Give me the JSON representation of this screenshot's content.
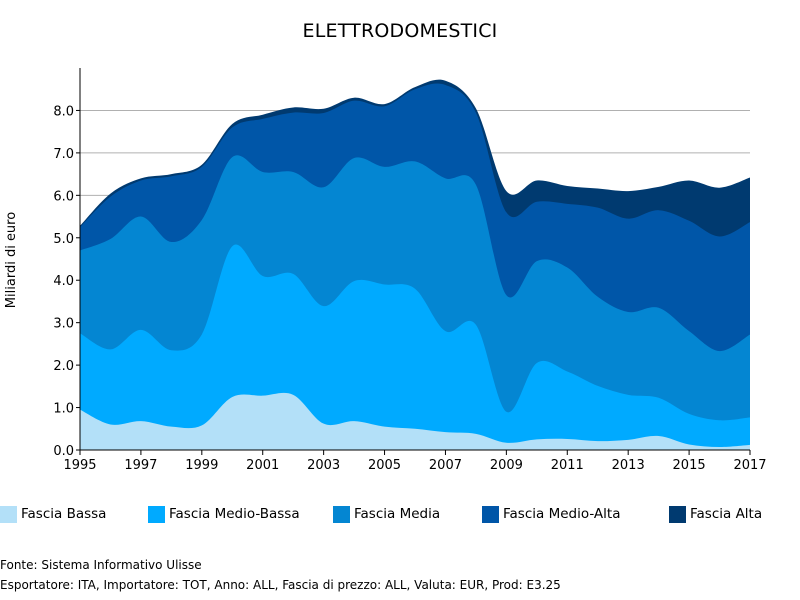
{
  "chart_data": {
    "type": "area",
    "stacked": true,
    "title": "ELETTRODOMESTICI",
    "ylabel": "Miliardi di euro",
    "xlabel": "",
    "xlim": [
      1995,
      2017
    ],
    "ylim": [
      0,
      9
    ],
    "x_ticks": [
      1995,
      1997,
      1999,
      2001,
      2003,
      2005,
      2007,
      2009,
      2011,
      2013,
      2015,
      2017
    ],
    "y_ticks": [
      0,
      1,
      2,
      3,
      4,
      5,
      6,
      7,
      8
    ],
    "y_tick_labels": [
      "0.0",
      "1.0",
      "2.0",
      "3.0",
      "4.0",
      "5.0",
      "6.0",
      "7.0",
      "8.0"
    ],
    "grid": "horizontal",
    "legend_position": "bottom",
    "x": [
      1995,
      1996,
      1997,
      1998,
      1999,
      2000,
      2001,
      2002,
      2003,
      2004,
      2005,
      2006,
      2007,
      2008,
      2009,
      2010,
      2011,
      2012,
      2013,
      2014,
      2015,
      2016,
      2017
    ],
    "series": [
      {
        "name": "Fascia Bassa",
        "color": "#b3e0f8",
        "values": [
          0.95,
          0.6,
          0.68,
          0.55,
          0.58,
          1.25,
          1.28,
          1.3,
          0.62,
          0.68,
          0.55,
          0.5,
          0.42,
          0.38,
          0.17,
          0.25,
          0.26,
          0.21,
          0.24,
          0.33,
          0.13,
          0.07,
          0.12
        ]
      },
      {
        "name": "Fascia Medio-Bassa",
        "color": "#00aaff",
        "values": [
          1.8,
          1.77,
          2.15,
          1.8,
          2.14,
          3.55,
          2.82,
          2.85,
          2.77,
          3.3,
          3.35,
          3.3,
          2.38,
          2.57,
          0.73,
          1.8,
          1.59,
          1.3,
          1.06,
          0.9,
          0.72,
          0.63,
          0.65
        ]
      },
      {
        "name": "Fascia Media",
        "color": "#0486d2",
        "values": [
          1.95,
          2.6,
          2.67,
          2.55,
          2.7,
          2.1,
          2.45,
          2.4,
          2.8,
          2.9,
          2.77,
          3.0,
          3.6,
          3.3,
          2.75,
          2.4,
          2.45,
          2.1,
          1.95,
          2.12,
          1.95,
          1.63,
          1.95
        ]
      },
      {
        "name": "Fascia Medio-Alta",
        "color": "#0056a8",
        "values": [
          0.55,
          1.0,
          0.85,
          1.55,
          1.25,
          0.7,
          1.25,
          1.4,
          1.75,
          1.35,
          1.43,
          1.7,
          2.2,
          1.7,
          1.95,
          1.4,
          1.5,
          2.1,
          2.2,
          2.3,
          2.6,
          2.7,
          2.65
        ]
      },
      {
        "name": "Fascia Alta",
        "color": "#003a70",
        "values": [
          0.03,
          0.07,
          0.05,
          0.05,
          0.05,
          0.08,
          0.1,
          0.12,
          0.1,
          0.07,
          0.05,
          0.05,
          0.1,
          0.1,
          0.5,
          0.5,
          0.42,
          0.45,
          0.65,
          0.55,
          0.95,
          1.15,
          1.05
        ]
      }
    ]
  },
  "footer": {
    "source": "Fonte: Sistema Informativo Ulisse",
    "params": "Esportatore: ITA, Importatore: TOT, Anno: ALL, Fascia di prezzo: ALL, Valuta: EUR, Prod: E3.25"
  }
}
